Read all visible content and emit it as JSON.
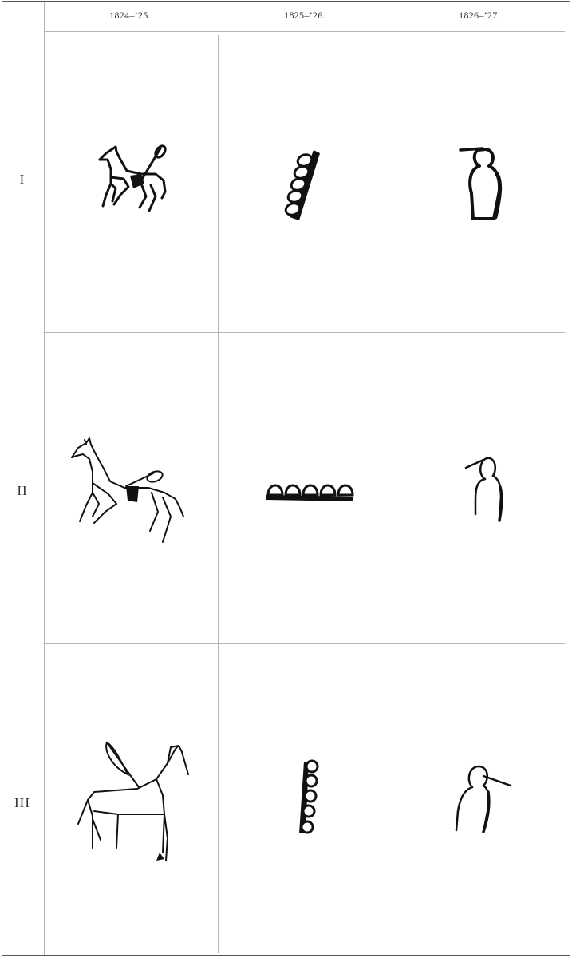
{
  "table": {
    "columns": [
      {
        "year": "1824–’25."
      },
      {
        "year": "1825–’26."
      },
      {
        "year": "1826–’27."
      }
    ],
    "rows": [
      {
        "label": "I",
        "cells": [
          {
            "icon": "horse-with-pipe-pictograph-icon"
          },
          {
            "icon": "vertical-row-of-ovals-pictograph-icon"
          },
          {
            "icon": "bold-human-figure-with-stick-icon"
          }
        ]
      },
      {
        "label": "II",
        "cells": [
          {
            "icon": "horse-with-pipe-outline-pictograph-icon"
          },
          {
            "icon": "horizontal-row-of-arches-pictograph-icon"
          },
          {
            "icon": "human-figure-with-stick-outline-icon"
          }
        ]
      },
      {
        "label": "III",
        "cells": [
          {
            "icon": "horse-with-feather-pictograph-icon"
          },
          {
            "icon": "vertical-row-of-circles-pictograph-icon"
          },
          {
            "icon": "human-figure-with-stick-right-icon"
          }
        ]
      }
    ]
  }
}
